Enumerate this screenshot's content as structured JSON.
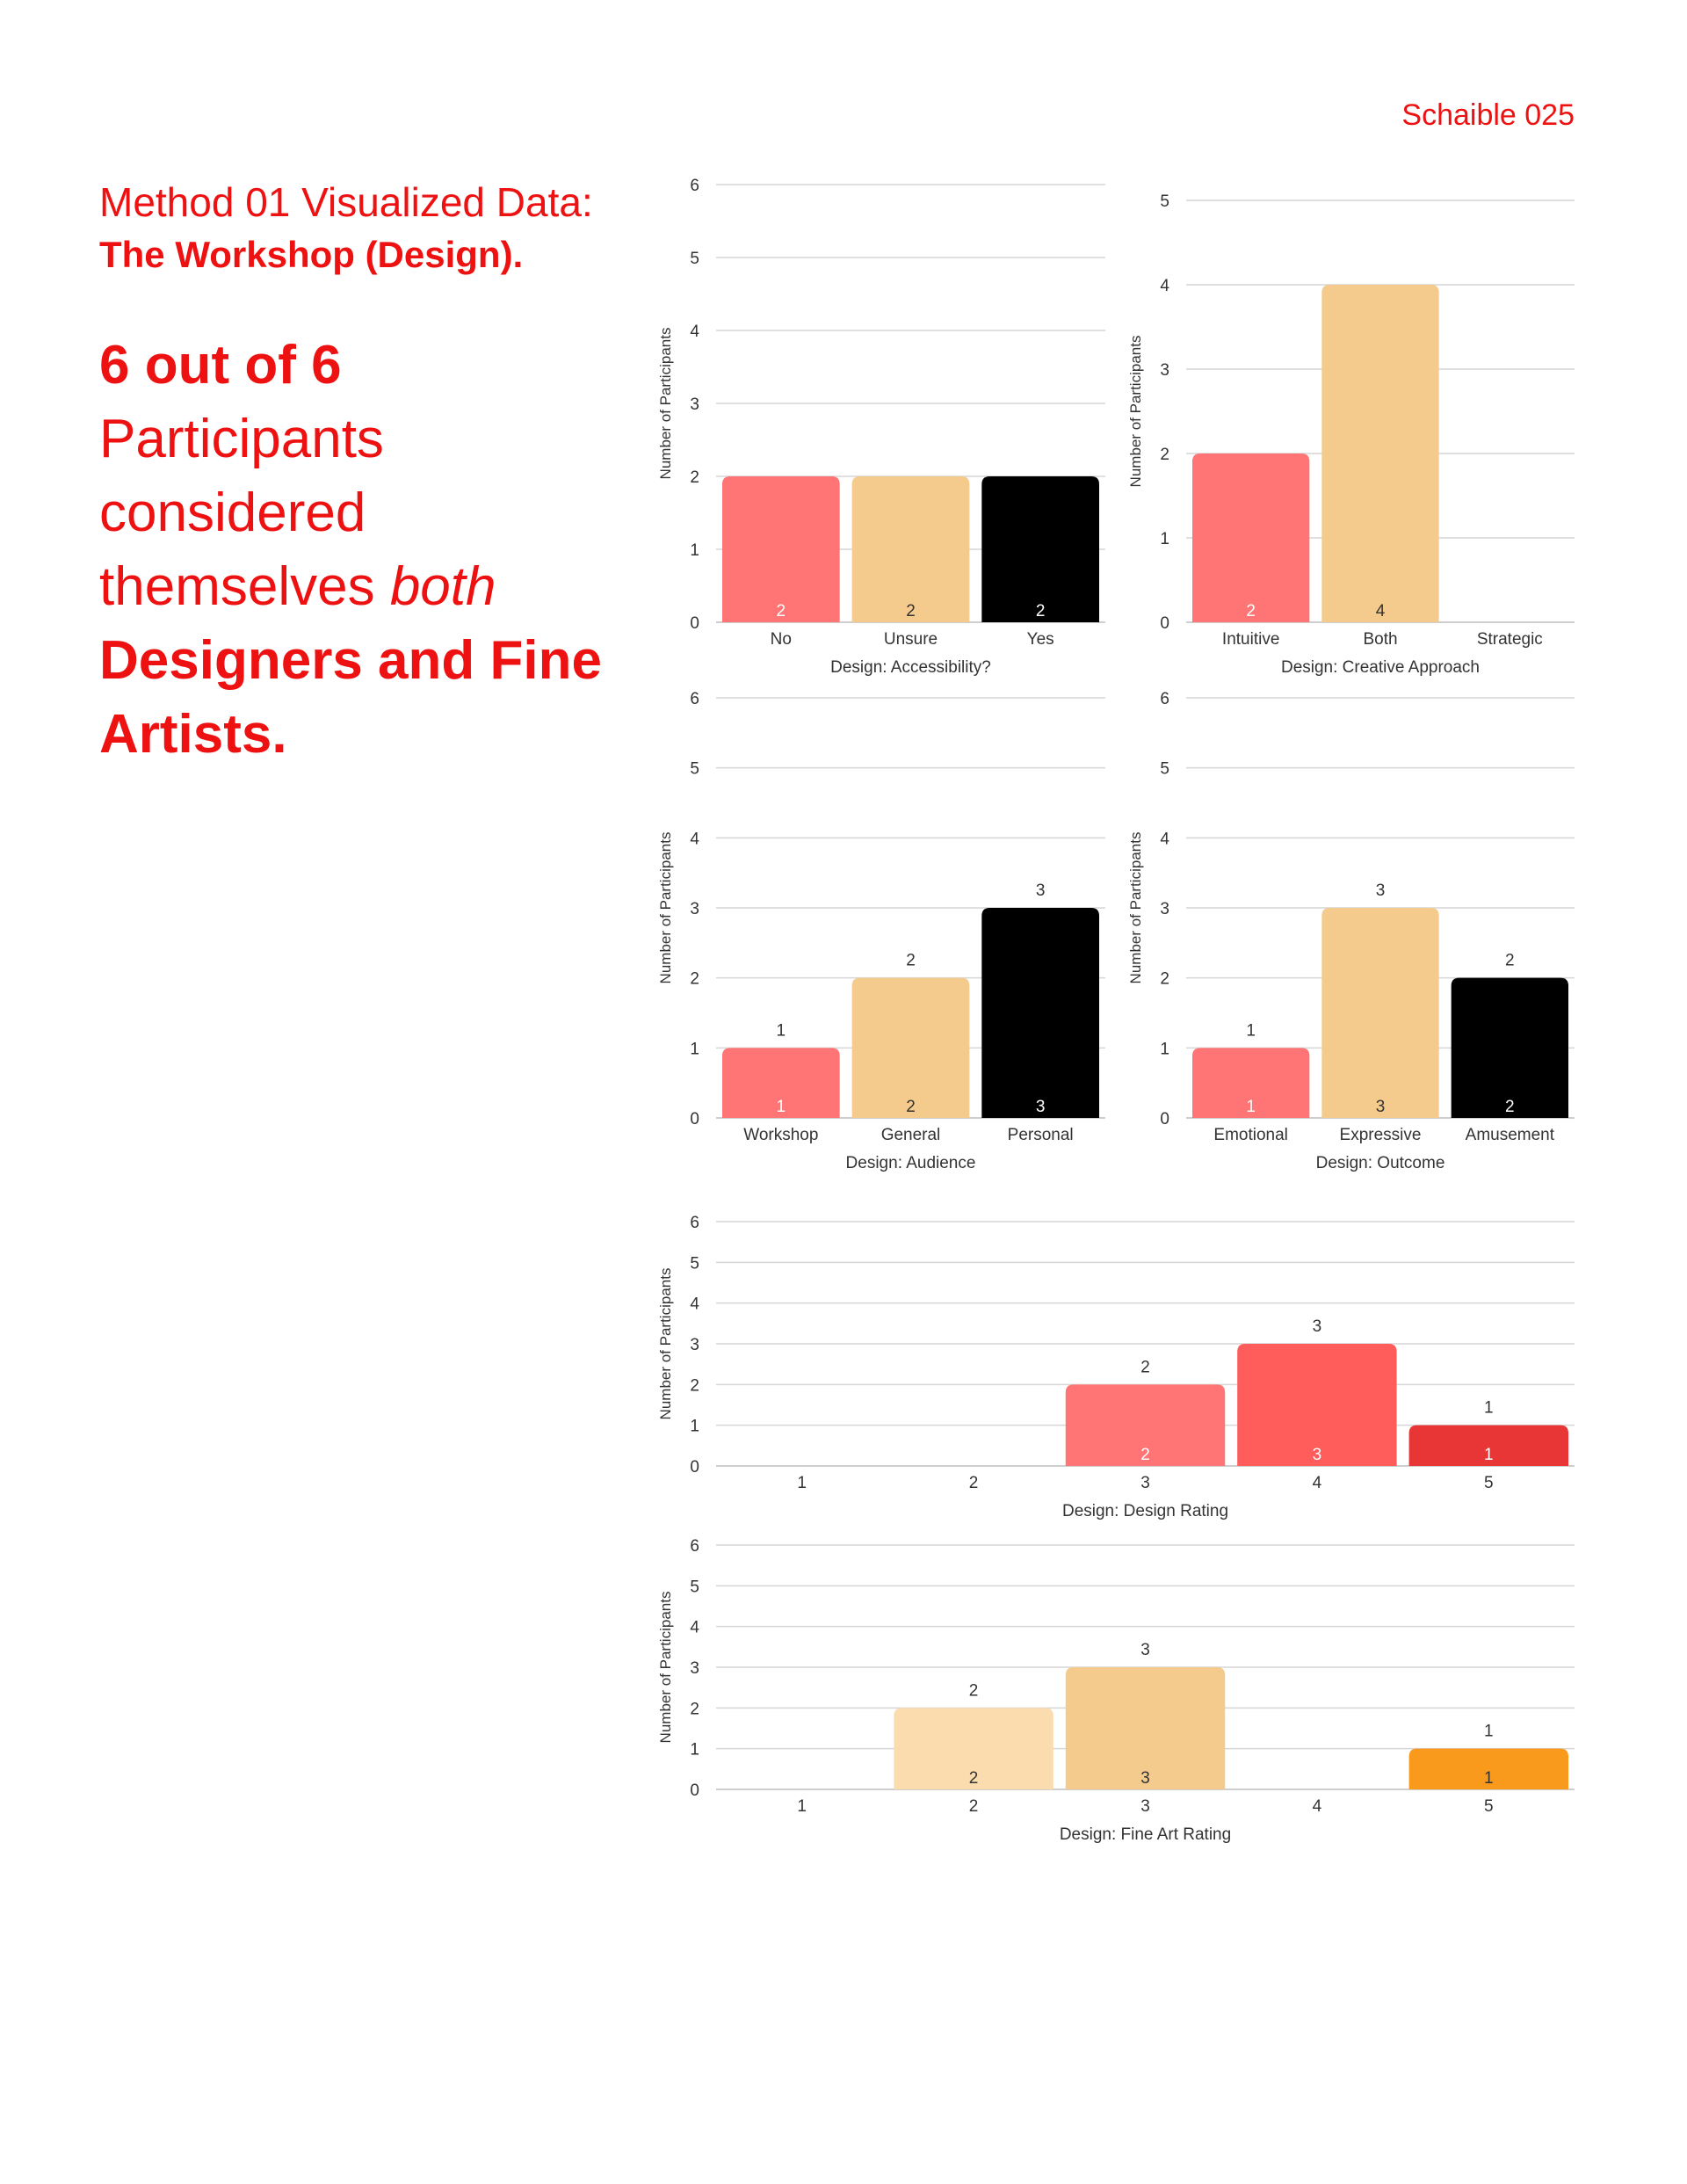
{
  "header": {
    "page_number": "Schaible 025"
  },
  "intro": {
    "line1": "Method 01 Visualized Data:",
    "line2": "The Workshop (Design).",
    "big_bold": "6 out of 6",
    "big_text1": "Participants considered themselves",
    "big_italic": "both",
    "big_bold2": "Designers and Fine Artists."
  },
  "chart_data": [
    {
      "type": "bar",
      "title": "",
      "xlabel": "Design: Accessibility?",
      "ylabel": "Number of Participants",
      "ylim": [
        0,
        6
      ],
      "yticks": [
        0,
        1,
        2,
        3,
        4,
        5,
        6
      ],
      "categories": [
        "No",
        "Unsure",
        "Yes"
      ],
      "values": [
        2,
        2,
        2
      ],
      "colors": [
        "#ff7474",
        "#f5ca8d",
        "#000000"
      ],
      "grid": true,
      "show_top_labels": false
    },
    {
      "type": "bar",
      "title": "",
      "xlabel": "Design: Creative Approach",
      "ylabel": "Number of Participants",
      "ylim": [
        0,
        5
      ],
      "yticks": [
        0,
        1,
        2,
        3,
        4,
        5
      ],
      "categories": [
        "Intuitive",
        "Both",
        "Strategic"
      ],
      "values": [
        2,
        4,
        0
      ],
      "colors": [
        "#ff7474",
        "#f5ca8d",
        "#000000"
      ],
      "grid": true,
      "show_top_labels": false
    },
    {
      "type": "bar",
      "title": "",
      "xlabel": "Design: Audience",
      "ylabel": "Number of Participants",
      "ylim": [
        0,
        6
      ],
      "yticks": [
        0,
        1,
        2,
        3,
        4,
        5,
        6
      ],
      "categories": [
        "Workshop",
        "General",
        "Personal"
      ],
      "values": [
        1,
        2,
        3
      ],
      "colors": [
        "#ff7474",
        "#f5ca8d",
        "#000000"
      ],
      "grid": true,
      "show_top_labels": true
    },
    {
      "type": "bar",
      "title": "",
      "xlabel": "Design: Outcome",
      "ylabel": "Number of Participants",
      "ylim": [
        0,
        6
      ],
      "yticks": [
        0,
        1,
        2,
        3,
        4,
        5,
        6
      ],
      "categories": [
        "Emotional",
        "Expressive",
        "Amusement"
      ],
      "values": [
        1,
        3,
        2
      ],
      "colors": [
        "#ff7474",
        "#f5ca8d",
        "#000000"
      ],
      "grid": true,
      "show_top_labels": true
    },
    {
      "type": "bar",
      "title": "",
      "xlabel": "Design: Design Rating",
      "ylabel": "Number of Participants",
      "ylim": [
        0,
        6
      ],
      "yticks": [
        0,
        1,
        2,
        3,
        4,
        5,
        6
      ],
      "categories": [
        "1",
        "2",
        "3",
        "4",
        "5"
      ],
      "values": [
        0,
        0,
        2,
        3,
        1
      ],
      "colors": [
        "#ff7474",
        "#ff7474",
        "#ff7474",
        "#ff5c5c",
        "#e83535"
      ],
      "grid": true,
      "show_top_labels": true
    },
    {
      "type": "bar",
      "title": "",
      "xlabel": "Design: Fine Art Rating",
      "ylabel": "Number of Participants",
      "ylim": [
        0,
        6
      ],
      "yticks": [
        0,
        1,
        2,
        3,
        4,
        5,
        6
      ],
      "categories": [
        "1",
        "2",
        "3",
        "4",
        "5"
      ],
      "values": [
        0,
        2,
        3,
        0,
        1
      ],
      "colors": [
        "#fbdcae",
        "#fbdcae",
        "#f5ca8d",
        "#f5ca8d",
        "#fa9a1c"
      ],
      "grid": true,
      "show_top_labels": true
    }
  ]
}
